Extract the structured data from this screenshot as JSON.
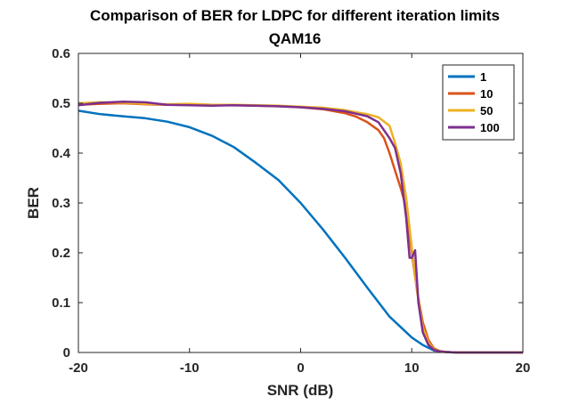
{
  "chart_data": {
    "type": "line",
    "title": "Comparison of BER for LDPC for different iteration limits",
    "subtitle": "QAM16",
    "xlabel": "SNR (dB)",
    "ylabel": "BER",
    "xlim": [
      -20,
      20
    ],
    "ylim": [
      0,
      0.6
    ],
    "xticks": [
      -20,
      -10,
      0,
      10,
      20
    ],
    "xtick_labels": [
      "-20",
      "-10",
      "0",
      "10",
      "20"
    ],
    "yticks": [
      0,
      0.1,
      0.2,
      0.3,
      0.4,
      0.5,
      0.6
    ],
    "ytick_labels": [
      "0",
      "0.1",
      "0.2",
      "0.3",
      "0.4",
      "0.5",
      "0.6"
    ],
    "grid": false,
    "legend_position": "top-right",
    "series": [
      {
        "name": "1",
        "color": "#0072BD",
        "x": [
          -20,
          -18,
          -16,
          -14,
          -12,
          -10,
          -8,
          -6,
          -4,
          -2,
          0,
          2,
          4,
          6,
          8,
          10,
          11,
          12,
          13,
          14,
          16,
          18,
          20
        ],
        "y": [
          0.485,
          0.478,
          0.474,
          0.47,
          0.463,
          0.452,
          0.435,
          0.412,
          0.38,
          0.346,
          0.3,
          0.247,
          0.19,
          0.13,
          0.072,
          0.03,
          0.015,
          0.004,
          0.001,
          0,
          0,
          0,
          0
        ]
      },
      {
        "name": "10",
        "color": "#D95319",
        "x": [
          -20,
          -18,
          -16,
          -14,
          -12,
          -10,
          -8,
          -6,
          -4,
          -2,
          0,
          2,
          4,
          5,
          6,
          7,
          7.5,
          8,
          8.5,
          9,
          9.5,
          10,
          10.5,
          11,
          11.5,
          12,
          12.5,
          13,
          14,
          16,
          18,
          20
        ],
        "y": [
          0.497,
          0.499,
          0.5,
          0.498,
          0.497,
          0.498,
          0.497,
          0.496,
          0.495,
          0.494,
          0.492,
          0.488,
          0.48,
          0.473,
          0.462,
          0.446,
          0.43,
          0.4,
          0.365,
          0.33,
          0.29,
          0.2,
          0.12,
          0.06,
          0.025,
          0.008,
          0.003,
          0.001,
          0,
          0,
          0,
          0
        ]
      },
      {
        "name": "50",
        "color": "#EDB120",
        "x": [
          -20,
          -18,
          -16,
          -14,
          -12,
          -10,
          -8,
          -6,
          -4,
          -2,
          0,
          2,
          4,
          6,
          7,
          8,
          8.5,
          9,
          9.5,
          10,
          10.5,
          11,
          11.5,
          12,
          12.5,
          13,
          14,
          16,
          18,
          20
        ],
        "y": [
          0.5,
          0.502,
          0.501,
          0.499,
          0.498,
          0.499,
          0.497,
          0.497,
          0.496,
          0.495,
          0.493,
          0.491,
          0.486,
          0.478,
          0.472,
          0.455,
          0.42,
          0.38,
          0.31,
          0.21,
          0.12,
          0.05,
          0.02,
          0.006,
          0.002,
          0.001,
          0,
          0,
          0,
          0
        ]
      },
      {
        "name": "100",
        "color": "#7E2F8E",
        "x": [
          -20,
          -18,
          -16,
          -14,
          -12,
          -10,
          -8,
          -6,
          -4,
          -2,
          0,
          2,
          4,
          6,
          7,
          8,
          8.5,
          9,
          9.5,
          9.8,
          10,
          10.3,
          10.6,
          11,
          11.5,
          12,
          12.5,
          13,
          14,
          16,
          18,
          20
        ],
        "y": [
          0.496,
          0.501,
          0.503,
          0.502,
          0.497,
          0.496,
          0.495,
          0.496,
          0.495,
          0.494,
          0.492,
          0.489,
          0.484,
          0.474,
          0.462,
          0.43,
          0.41,
          0.36,
          0.27,
          0.19,
          0.19,
          0.205,
          0.1,
          0.04,
          0.015,
          0.005,
          0.002,
          0.001,
          0,
          0,
          0,
          0
        ]
      }
    ]
  }
}
